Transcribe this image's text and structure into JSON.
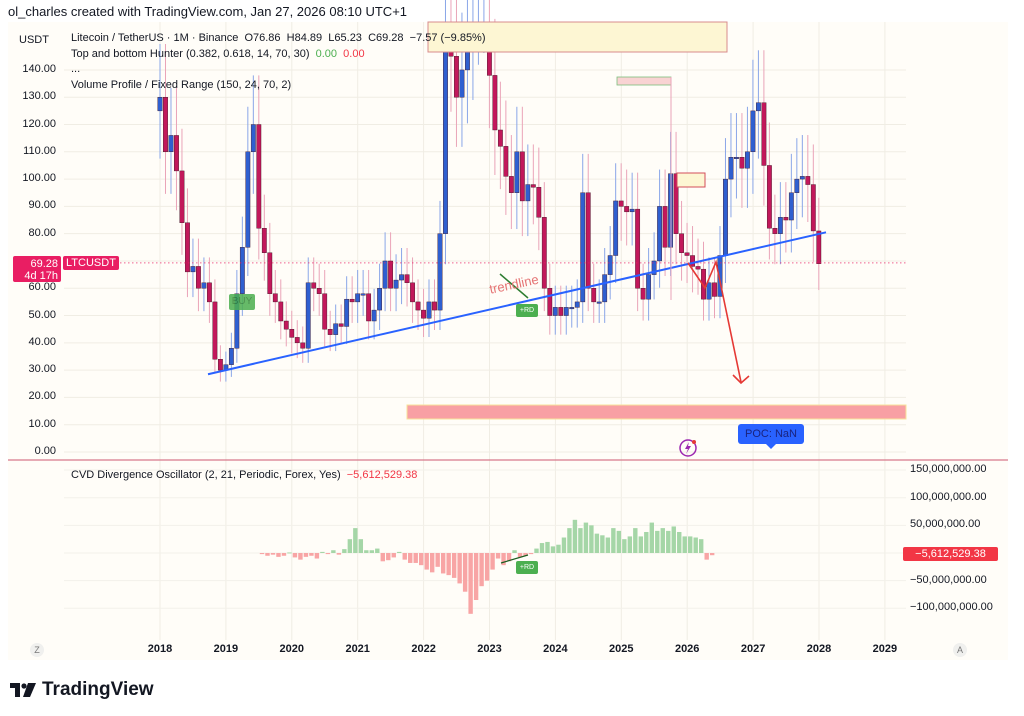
{
  "credit_line": "ol_charles created with TradingView.com, Jan 27, 2026 08:10 UTC+1",
  "header": {
    "currency_button": "USDT",
    "symbol_legend": "Litecoin / TetherUS · 1M · Binance",
    "ohlc": {
      "open": "O76.86",
      "high": "H84.89",
      "low": "L65.23",
      "close": "C69.28",
      "change": "−7.57 (−9.85%)"
    },
    "indicator_1": "Top and bottom Hunter (0.382, 0.618, 14, 70, 30)",
    "indicator_1_val_green": "0.00",
    "indicator_1_val_red": "0.00",
    "collapsed_indicators": "...",
    "indicator_2": "Volume Profile / Fixed Range (150, 24, 70, 2)"
  },
  "price_axis": {
    "labels": [
      "140.00",
      "130.00",
      "120.00",
      "110.00",
      "100.00",
      "90.00",
      "80.00",
      "60.00",
      "50.00",
      "40.00",
      "30.00",
      "20.00",
      "10.00",
      "0.00"
    ],
    "current_price": "69.28",
    "countdown": "4d 17h",
    "symbol_tag": "LTCUSDT"
  },
  "annotations": {
    "buy_label": "BUY",
    "rd_label": "+RD",
    "trendline_label": "trendline",
    "poc_label": "POC: NaN"
  },
  "oscillator": {
    "legend": "CVD Divergence Oscillator (2, 21, Periodic, Forex, Yes)",
    "value": "−5,612,529.38",
    "axis_labels": [
      "150,000,000.00",
      "100,000,000.00",
      "50,000,000.00",
      "−50,000,000.00",
      "−100,000,000.00"
    ],
    "current_tag": "−5,612,529.38"
  },
  "time_axis": {
    "labels": [
      "2018",
      "2019",
      "2020",
      "2021",
      "2022",
      "2023",
      "2024",
      "2025",
      "2026",
      "2027",
      "2028",
      "2029"
    ],
    "left_button": "Z",
    "right_button": "A"
  },
  "brand": {
    "name": "TradingView"
  },
  "colors": {
    "up": "#2f5fd0",
    "down": "#c2185b",
    "trendline": "#2962ff",
    "projection": "#e53935",
    "osc_up": "#a5d6a7",
    "osc_down": "#f8a5a5",
    "price_tag": "#e91e63"
  },
  "chart_data": [
    {
      "type": "candlestick",
      "title": "Litecoin / TetherUS · 1M · Binance",
      "ylabel": "USDT",
      "ylim": [
        0,
        145
      ],
      "x_ticks": [
        "2018",
        "2019",
        "2020",
        "2021",
        "2022",
        "2023",
        "2024",
        "2025",
        "2026",
        "2027",
        "2028",
        "2029"
      ],
      "last_candle": {
        "open": 76.86,
        "high": 84.89,
        "low": 65.23,
        "close": 69.28,
        "change": -7.57,
        "change_pct": -9.85
      },
      "trendline": {
        "from": [
          "2018-11",
          28.5
        ],
        "to": [
          "2028-02",
          80.5
        ]
      },
      "projection_path": [
        [
          "2026-01",
          69
        ],
        [
          "2026-04",
          63
        ],
        [
          "2026-06",
          71
        ],
        [
          "2026-10",
          26
        ]
      ],
      "target_zone": {
        "from": 12,
        "to": 17,
        "x_start": "2021-10",
        "x_end": "2029-06"
      },
      "grid": true
    },
    {
      "type": "bar",
      "title": "CVD Divergence Oscillator (2, 21, Periodic, Forex, Yes)",
      "ylim": [
        -150000000,
        150000000
      ],
      "last_value": -5612529.38,
      "grid": true
    }
  ]
}
